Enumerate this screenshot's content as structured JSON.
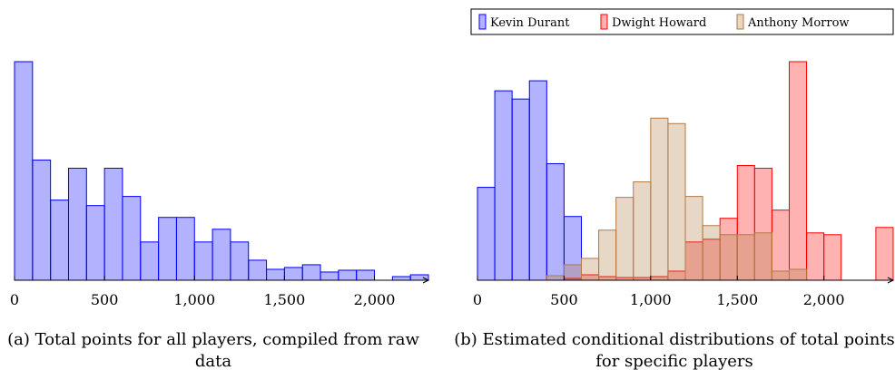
{
  "chart_data": [
    {
      "type": "bar",
      "subplot": "a",
      "caption": "(a) Total points for all players, compiled from raw data",
      "xlim": [
        0,
        2300
      ],
      "ylim": [
        0,
        240
      ],
      "xticks": [
        0,
        500,
        1000,
        1500,
        2000
      ],
      "xtick_labels": [
        "0",
        "500",
        "1,000",
        "1,500",
        "2,000"
      ],
      "bin_width": 100,
      "series": [
        {
          "color": "#0000ff",
          "x": [
            0,
            100,
            200,
            300,
            400,
            500,
            600,
            700,
            800,
            900,
            1000,
            1100,
            1200,
            1300,
            1400,
            1500,
            1600,
            1700,
            1800,
            1900,
            2000,
            2100,
            2200
          ],
          "values": [
            240,
            132,
            88,
            123,
            82,
            123,
            92,
            42,
            69,
            69,
            42,
            56,
            42,
            22,
            12,
            14,
            17,
            9,
            11,
            11,
            0,
            4,
            6
          ]
        }
      ]
    },
    {
      "type": "bar",
      "subplot": "b",
      "caption": "(b) Estimated conditional distributions of total points for specific players",
      "xlim": [
        0,
        2400
      ],
      "ylim": [
        0,
        240
      ],
      "xticks": [
        0,
        500,
        1000,
        1500,
        2000
      ],
      "xtick_labels": [
        "0",
        "500",
        "1,000",
        "1,500",
        "2,000"
      ],
      "bin_width": 100,
      "legend_position": "top",
      "series": [
        {
          "name": "Kevin Durant",
          "color": "#0000ff",
          "x": [
            0,
            100,
            200,
            300,
            400,
            500
          ],
          "values": [
            102,
            208,
            199,
            219,
            128,
            70
          ]
        },
        {
          "name": "Dwight Howard",
          "color": "#ff0000",
          "x": [
            500,
            600,
            700,
            800,
            900,
            1000,
            1100,
            1200,
            1300,
            1400,
            1500,
            1600,
            1700,
            1800,
            1900,
            2000,
            2300
          ],
          "values": [
            2,
            6,
            4,
            3,
            3,
            4,
            10,
            42,
            45,
            68,
            126,
            123,
            77,
            240,
            52,
            50,
            58
          ]
        },
        {
          "name": "Anthony Morrow",
          "color": "#b07a45",
          "x": [
            400,
            500,
            600,
            700,
            800,
            900,
            1000,
            1100,
            1200,
            1300,
            1400,
            1500,
            1600,
            1700,
            1800
          ],
          "values": [
            5,
            17,
            24,
            55,
            91,
            108,
            178,
            172,
            92,
            60,
            50,
            50,
            52,
            10,
            12
          ]
        }
      ]
    }
  ]
}
